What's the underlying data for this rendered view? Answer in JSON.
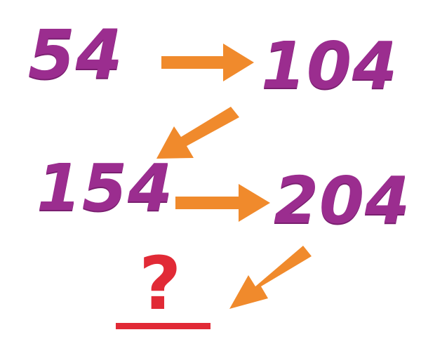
{
  "sequence": {
    "term1": "54",
    "term2": "104",
    "term3": "154",
    "term4": "204",
    "unknown": "?"
  },
  "colors": {
    "number": "#9b2d8f",
    "arrow": "#f08a2c",
    "question": "#e12a36"
  },
  "icons": [
    "arrow-right-icon",
    "arrow-down-left-icon",
    "arrow-right-icon",
    "arrow-down-left-icon",
    "question-mark-icon"
  ]
}
